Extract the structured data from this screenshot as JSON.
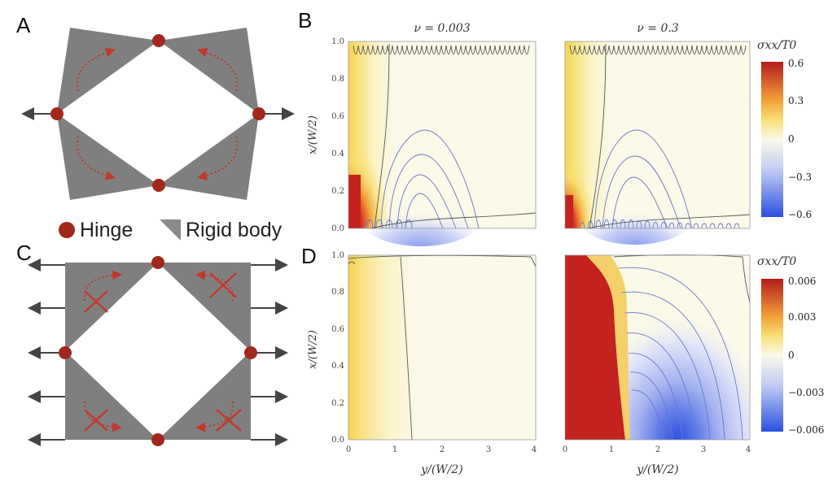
{
  "panels": {
    "a": "A",
    "b": "B",
    "c": "C",
    "d": "D"
  },
  "legend": {
    "hinge": "Hinge",
    "rigid": "Rigid body"
  },
  "titles": {
    "left": "ν = 0.003",
    "right": "ν = 0.3"
  },
  "axes": {
    "xlabel": "y/(W/2)",
    "ylabel": "x/(W/2)",
    "yticks": [
      "0.0",
      "0.2",
      "0.4",
      "0.6",
      "0.8",
      "1.0"
    ],
    "xticks": [
      "0",
      "1",
      "2",
      "3",
      "4"
    ]
  },
  "colorbar_top": {
    "label": "σxx/T0",
    "ticks": [
      "0.6",
      "0.3",
      "0",
      "−0.3",
      "−0.6"
    ]
  },
  "colorbar_bottom": {
    "label": "σxx/T0",
    "ticks": [
      "0.006",
      "0.003",
      "0",
      "−0.003",
      "−0.006"
    ]
  },
  "colors": {
    "rigid": "#7f7f7f",
    "hinge": "#a0281c",
    "arrow": "#c0392b",
    "hot": "#c4221f",
    "cold": "#2b50e0",
    "neutral": "#fbf9e8"
  }
}
